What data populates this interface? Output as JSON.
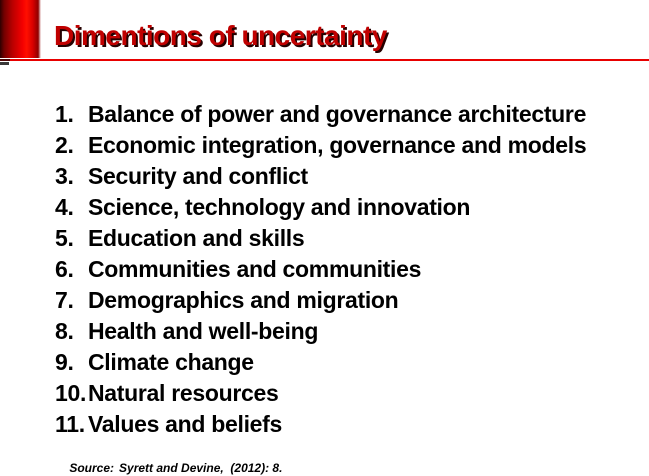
{
  "slide": {
    "title": "Dimentions of uncertainty",
    "list": {
      "items": [
        {
          "number": "1.",
          "label": "Balance of power and governance architecture"
        },
        {
          "number": "2.",
          "label": "Economic integration, governance and models"
        },
        {
          "number": "3.",
          "label": "Security and conflict"
        },
        {
          "number": "4.",
          "label": "Science, technology and innovation"
        },
        {
          "number": "5.",
          "label": "Education and skills"
        },
        {
          "number": "6.",
          "label": "Communities and communities"
        },
        {
          "number": "7.",
          "label": "Demographics and migration"
        },
        {
          "number": "8.",
          "label": "Health and well-being"
        },
        {
          "number": "9.",
          "label": "Climate change"
        },
        {
          "number": "10.",
          "label": "Natural resources"
        },
        {
          "number": "11.",
          "label": "Values and beliefs"
        }
      ]
    },
    "source": {
      "label": "Source:",
      "citation": "Syrett and Devine,  (2012): 8."
    },
    "colors": {
      "title_red": "#c00000",
      "accent_line_red": "#e80000",
      "bar_bright_red": "#ff0f00",
      "bar_dark_red": "#2e0000",
      "text_black": "#000000",
      "background": "#ffffff"
    }
  }
}
